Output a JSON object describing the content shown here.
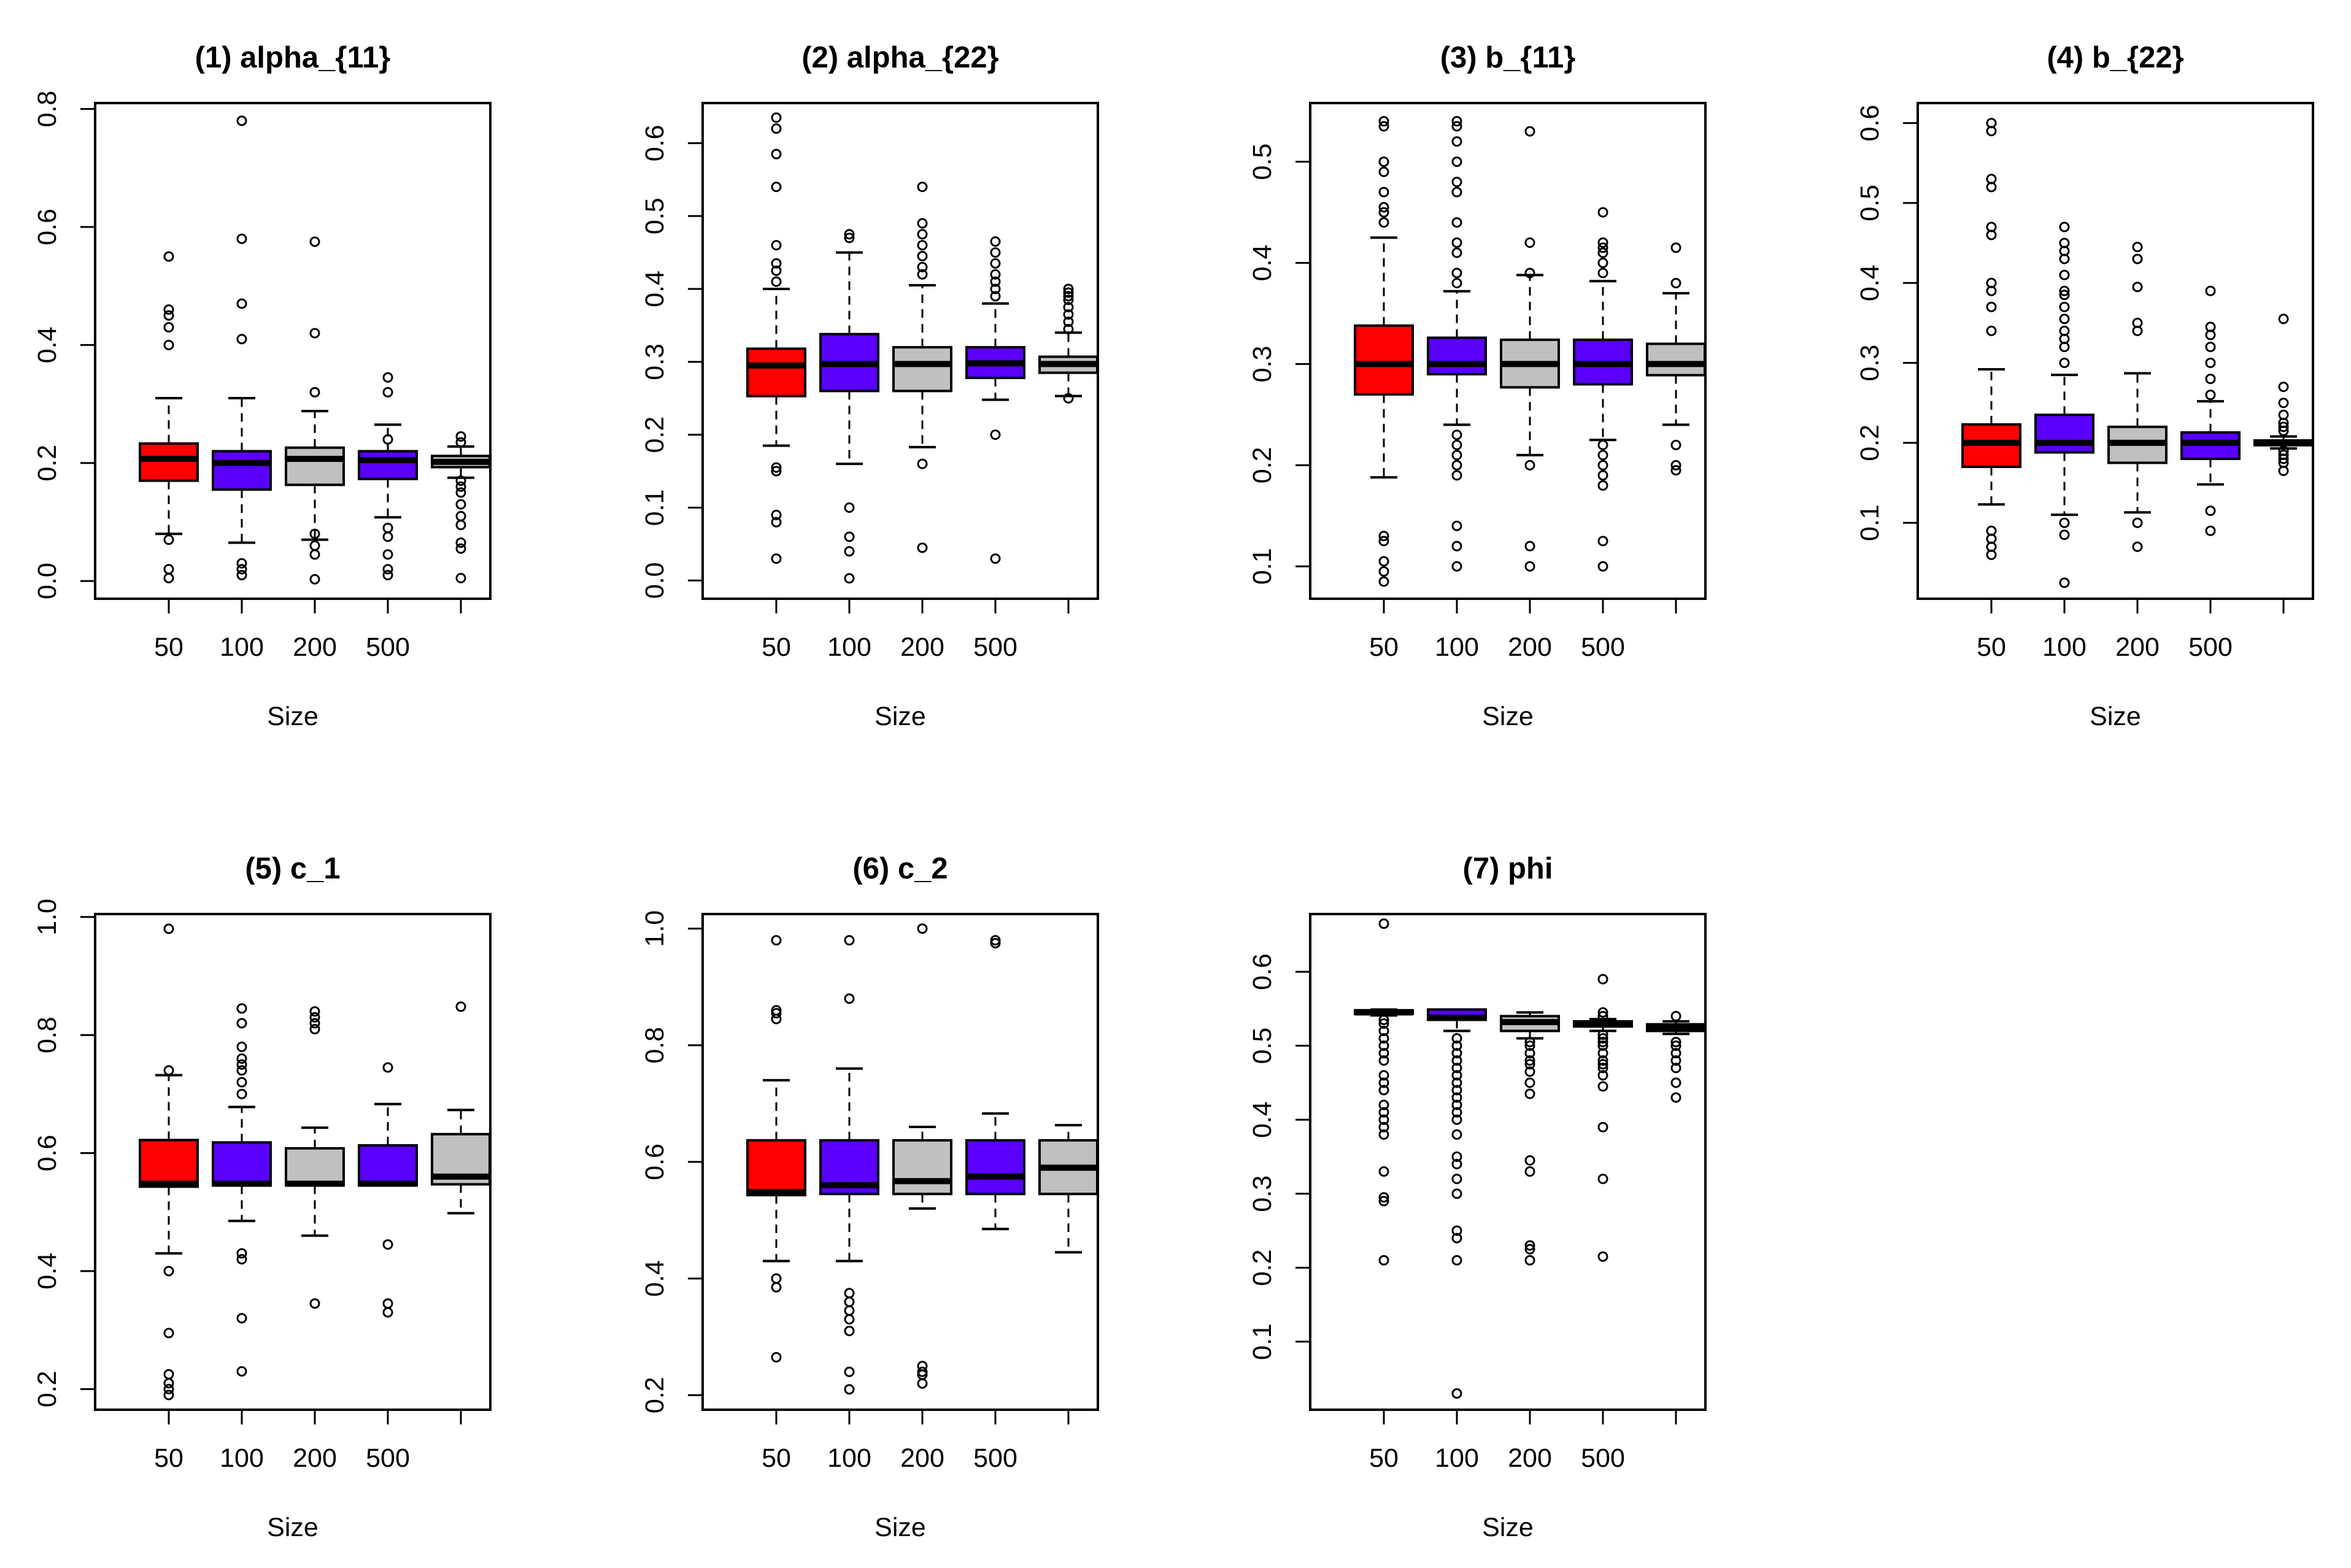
{
  "figure": {
    "colors": {
      "red": "#ff0000",
      "blue": "#5a00ff",
      "gray": "#c0c0c0",
      "ink": "#000000"
    }
  },
  "chart_data": [
    {
      "type": "box",
      "title": "(1)  alpha_{11}",
      "xlabel": "Size",
      "x_tick_labels": [
        "50",
        "100",
        "200",
        "500",
        ""
      ],
      "y_ticks": [
        0.0,
        0.2,
        0.4,
        0.6,
        0.8
      ],
      "y_tick_labels": [
        "0.0",
        "0.2",
        "0.4",
        "0.6",
        "0.8"
      ],
      "ylim": [
        -0.03,
        0.81
      ],
      "boxes": [
        {
          "color": "red",
          "whisker_low": 0.08,
          "q1": 0.17,
          "median": 0.207,
          "q3": 0.233,
          "whisker_high": 0.31,
          "outliers": [
            0.005,
            0.02,
            0.07,
            0.4,
            0.43,
            0.45,
            0.46,
            0.55
          ]
        },
        {
          "color": "blue",
          "whisker_low": 0.065,
          "q1": 0.155,
          "median": 0.2,
          "q3": 0.22,
          "whisker_high": 0.31,
          "outliers": [
            0.01,
            0.02,
            0.03,
            0.41,
            0.47,
            0.58,
            0.78
          ]
        },
        {
          "color": "gray",
          "whisker_low": 0.07,
          "q1": 0.163,
          "median": 0.207,
          "q3": 0.226,
          "whisker_high": 0.288,
          "outliers": [
            0.003,
            0.045,
            0.06,
            0.08,
            0.32,
            0.42,
            0.575
          ]
        },
        {
          "color": "blue",
          "whisker_low": 0.108,
          "q1": 0.173,
          "median": 0.205,
          "q3": 0.22,
          "whisker_high": 0.265,
          "outliers": [
            0.01,
            0.02,
            0.045,
            0.075,
            0.09,
            0.24,
            0.32,
            0.345
          ]
        },
        {
          "color": "gray",
          "whisker_low": 0.175,
          "q1": 0.193,
          "median": 0.202,
          "q3": 0.212,
          "whisker_high": 0.228,
          "outliers": [
            0.005,
            0.055,
            0.065,
            0.095,
            0.11,
            0.13,
            0.15,
            0.16,
            0.17,
            0.235,
            0.245
          ]
        }
      ]
    },
    {
      "type": "box",
      "title": "(2) alpha_{22}",
      "xlabel": "Size",
      "x_tick_labels": [
        "50",
        "100",
        "200",
        "500",
        ""
      ],
      "y_ticks": [
        0.0,
        0.1,
        0.2,
        0.3,
        0.4,
        0.5,
        0.6
      ],
      "y_tick_labels": [
        "0.0",
        "0.1",
        "0.2",
        "0.3",
        "0.4",
        "0.5",
        "0.6"
      ],
      "ylim": [
        -0.025,
        0.655
      ],
      "boxes": [
        {
          "color": "red",
          "whisker_low": 0.185,
          "q1": 0.253,
          "median": 0.295,
          "q3": 0.318,
          "whisker_high": 0.4,
          "outliers": [
            0.03,
            0.08,
            0.09,
            0.15,
            0.155,
            0.41,
            0.425,
            0.435,
            0.46,
            0.54,
            0.585,
            0.62,
            0.635
          ]
        },
        {
          "color": "blue",
          "whisker_low": 0.16,
          "q1": 0.26,
          "median": 0.297,
          "q3": 0.338,
          "whisker_high": 0.45,
          "outliers": [
            0.003,
            0.04,
            0.06,
            0.1,
            0.47,
            0.475
          ]
        },
        {
          "color": "gray",
          "whisker_low": 0.183,
          "q1": 0.26,
          "median": 0.297,
          "q3": 0.32,
          "whisker_high": 0.405,
          "outliers": [
            0.045,
            0.16,
            0.42,
            0.43,
            0.445,
            0.46,
            0.475,
            0.49,
            0.54
          ]
        },
        {
          "color": "blue",
          "whisker_low": 0.248,
          "q1": 0.278,
          "median": 0.298,
          "q3": 0.32,
          "whisker_high": 0.38,
          "outliers": [
            0.03,
            0.2,
            0.39,
            0.4,
            0.41,
            0.42,
            0.435,
            0.45,
            0.465
          ]
        },
        {
          "color": "gray",
          "whisker_low": 0.253,
          "q1": 0.285,
          "median": 0.297,
          "q3": 0.307,
          "whisker_high": 0.34,
          "outliers": [
            0.25,
            0.345,
            0.355,
            0.365,
            0.375,
            0.385,
            0.39,
            0.395,
            0.4
          ]
        }
      ]
    },
    {
      "type": "box",
      "title": "(3) b_{11}",
      "xlabel": "Size",
      "x_tick_labels": [
        "50",
        "100",
        "200",
        "500",
        ""
      ],
      "y_ticks": [
        0.1,
        0.2,
        0.3,
        0.4,
        0.5
      ],
      "y_tick_labels": [
        "0.1",
        "0.2",
        "0.3",
        "0.4",
        "0.5"
      ],
      "ylim": [
        0.068,
        0.558
      ],
      "boxes": [
        {
          "color": "red",
          "whisker_low": 0.188,
          "q1": 0.27,
          "median": 0.3,
          "q3": 0.338,
          "whisker_high": 0.425,
          "outliers": [
            0.085,
            0.095,
            0.105,
            0.125,
            0.13,
            0.44,
            0.45,
            0.455,
            0.47,
            0.49,
            0.5,
            0.535,
            0.54
          ]
        },
        {
          "color": "blue",
          "whisker_low": 0.24,
          "q1": 0.29,
          "median": 0.3,
          "q3": 0.326,
          "whisker_high": 0.372,
          "outliers": [
            0.1,
            0.12,
            0.14,
            0.19,
            0.2,
            0.21,
            0.22,
            0.23,
            0.38,
            0.39,
            0.41,
            0.42,
            0.44,
            0.47,
            0.48,
            0.5,
            0.52,
            0.535,
            0.54
          ]
        },
        {
          "color": "gray",
          "whisker_low": 0.21,
          "q1": 0.277,
          "median": 0.3,
          "q3": 0.324,
          "whisker_high": 0.388,
          "outliers": [
            0.1,
            0.12,
            0.2,
            0.39,
            0.42,
            0.53
          ]
        },
        {
          "color": "blue",
          "whisker_low": 0.225,
          "q1": 0.28,
          "median": 0.3,
          "q3": 0.324,
          "whisker_high": 0.382,
          "outliers": [
            0.1,
            0.125,
            0.18,
            0.19,
            0.2,
            0.21,
            0.22,
            0.39,
            0.4,
            0.41,
            0.415,
            0.42,
            0.45
          ]
        },
        {
          "color": "gray",
          "whisker_low": 0.24,
          "q1": 0.289,
          "median": 0.3,
          "q3": 0.32,
          "whisker_high": 0.37,
          "outliers": [
            0.195,
            0.2,
            0.22,
            0.38,
            0.415
          ]
        }
      ]
    },
    {
      "type": "box",
      "title": "(4)  b_{22}",
      "xlabel": "Size",
      "x_tick_labels": [
        "50",
        "100",
        "200",
        "500",
        ""
      ],
      "y_ticks": [
        0.1,
        0.2,
        0.3,
        0.4,
        0.5,
        0.6
      ],
      "y_tick_labels": [
        "0.1",
        "0.2",
        "0.3",
        "0.4",
        "0.5",
        "0.6"
      ],
      "ylim": [
        0.005,
        0.625
      ],
      "boxes": [
        {
          "color": "red",
          "whisker_low": 0.123,
          "q1": 0.17,
          "median": 0.2,
          "q3": 0.223,
          "whisker_high": 0.292,
          "outliers": [
            0.06,
            0.07,
            0.08,
            0.09,
            0.34,
            0.37,
            0.39,
            0.4,
            0.46,
            0.47,
            0.52,
            0.53,
            0.59,
            0.6
          ]
        },
        {
          "color": "blue",
          "whisker_low": 0.11,
          "q1": 0.188,
          "median": 0.2,
          "q3": 0.235,
          "whisker_high": 0.285,
          "outliers": [
            0.025,
            0.085,
            0.1,
            0.3,
            0.32,
            0.33,
            0.34,
            0.355,
            0.37,
            0.385,
            0.39,
            0.41,
            0.43,
            0.44,
            0.45,
            0.47
          ]
        },
        {
          "color": "gray",
          "whisker_low": 0.113,
          "q1": 0.175,
          "median": 0.2,
          "q3": 0.22,
          "whisker_high": 0.287,
          "outliers": [
            0.07,
            0.1,
            0.34,
            0.35,
            0.395,
            0.43,
            0.445
          ]
        },
        {
          "color": "blue",
          "whisker_low": 0.148,
          "q1": 0.18,
          "median": 0.2,
          "q3": 0.213,
          "whisker_high": 0.252,
          "outliers": [
            0.09,
            0.115,
            0.26,
            0.28,
            0.3,
            0.32,
            0.335,
            0.345,
            0.39
          ]
        },
        {
          "color": "gray",
          "whisker_low": 0.193,
          "q1": 0.197,
          "median": 0.2,
          "q3": 0.203,
          "whisker_high": 0.208,
          "outliers": [
            0.165,
            0.175,
            0.18,
            0.185,
            0.19,
            0.215,
            0.22,
            0.225,
            0.235,
            0.25,
            0.27,
            0.355
          ]
        }
      ]
    },
    {
      "type": "box",
      "title": "(5)  c_1",
      "xlabel": "Size",
      "x_tick_labels": [
        "50",
        "100",
        "200",
        "500",
        ""
      ],
      "y_ticks": [
        0.2,
        0.4,
        0.6,
        0.8,
        1.0
      ],
      "y_tick_labels": [
        "0.2",
        "0.4",
        "0.6",
        "0.8",
        "1.0"
      ],
      "ylim": [
        0.165,
        1.005
      ],
      "boxes": [
        {
          "color": "red",
          "whisker_low": 0.43,
          "q1": 0.543,
          "median": 0.548,
          "q3": 0.622,
          "whisker_high": 0.732,
          "outliers": [
            0.19,
            0.2,
            0.21,
            0.225,
            0.295,
            0.4,
            0.74,
            0.98
          ]
        },
        {
          "color": "blue",
          "whisker_low": 0.485,
          "q1": 0.545,
          "median": 0.548,
          "q3": 0.618,
          "whisker_high": 0.678,
          "outliers": [
            0.23,
            0.32,
            0.42,
            0.43,
            0.7,
            0.72,
            0.74,
            0.75,
            0.76,
            0.78,
            0.82,
            0.845
          ]
        },
        {
          "color": "gray",
          "whisker_low": 0.46,
          "q1": 0.545,
          "median": 0.548,
          "q3": 0.608,
          "whisker_high": 0.643,
          "outliers": [
            0.345,
            0.81,
            0.82,
            0.83,
            0.84
          ]
        },
        {
          "color": "blue",
          "whisker_low": 0.545,
          "q1": 0.545,
          "median": 0.548,
          "q3": 0.613,
          "whisker_high": 0.683,
          "outliers": [
            0.33,
            0.345,
            0.445,
            0.745
          ]
        },
        {
          "color": "gray",
          "whisker_low": 0.498,
          "q1": 0.547,
          "median": 0.56,
          "q3": 0.632,
          "whisker_high": 0.673,
          "outliers": [
            0.848
          ]
        }
      ]
    },
    {
      "type": "box",
      "title": "(6) c_2",
      "xlabel": "Size",
      "x_tick_labels": [
        "50",
        "100",
        "200",
        "500",
        ""
      ],
      "y_ticks": [
        0.2,
        0.4,
        0.6,
        0.8,
        1.0
      ],
      "y_tick_labels": [
        "0.2",
        "0.4",
        "0.6",
        "0.8",
        "1.0"
      ],
      "ylim": [
        0.175,
        1.025
      ],
      "boxes": [
        {
          "color": "red",
          "whisker_low": 0.43,
          "q1": 0.543,
          "median": 0.548,
          "q3": 0.637,
          "whisker_high": 0.74,
          "outliers": [
            0.265,
            0.385,
            0.4,
            0.845,
            0.855,
            0.86,
            0.98
          ]
        },
        {
          "color": "blue",
          "whisker_low": 0.43,
          "q1": 0.545,
          "median": 0.56,
          "q3": 0.637,
          "whisker_high": 0.76,
          "outliers": [
            0.21,
            0.24,
            0.31,
            0.33,
            0.345,
            0.36,
            0.375,
            0.88,
            0.98
          ]
        },
        {
          "color": "gray",
          "whisker_low": 0.52,
          "q1": 0.545,
          "median": 0.567,
          "q3": 0.637,
          "whisker_high": 0.66,
          "outliers": [
            0.22,
            0.235,
            0.24,
            0.25,
            1.0
          ]
        },
        {
          "color": "blue",
          "whisker_low": 0.485,
          "q1": 0.545,
          "median": 0.575,
          "q3": 0.637,
          "whisker_high": 0.683,
          "outliers": [
            0.975,
            0.98
          ]
        },
        {
          "color": "gray",
          "whisker_low": 0.445,
          "q1": 0.545,
          "median": 0.59,
          "q3": 0.637,
          "whisker_high": 0.663,
          "outliers": []
        }
      ]
    },
    {
      "type": "box",
      "title": "(7)  phi",
      "xlabel": "Size",
      "x_tick_labels": [
        "50",
        "100",
        "200",
        "500",
        ""
      ],
      "y_ticks": [
        0.1,
        0.2,
        0.3,
        0.4,
        0.5,
        0.6
      ],
      "y_tick_labels": [
        "0.1",
        "0.2",
        "0.3",
        "0.4",
        "0.5",
        "0.6"
      ],
      "ylim": [
        0.008,
        0.678
      ],
      "boxes": [
        {
          "color": "red",
          "whisker_low": 0.541,
          "q1": 0.543,
          "median": 0.545,
          "q3": 0.548,
          "whisker_high": 0.549,
          "outliers": [
            0.21,
            0.29,
            0.295,
            0.33,
            0.38,
            0.39,
            0.4,
            0.41,
            0.42,
            0.44,
            0.45,
            0.46,
            0.48,
            0.49,
            0.5,
            0.51,
            0.52,
            0.53,
            0.535,
            0.665
          ]
        },
        {
          "color": "blue",
          "whisker_low": 0.52,
          "q1": 0.535,
          "median": 0.538,
          "q3": 0.549,
          "whisker_high": 0.549,
          "outliers": [
            0.03,
            0.21,
            0.24,
            0.25,
            0.3,
            0.32,
            0.34,
            0.35,
            0.38,
            0.4,
            0.41,
            0.42,
            0.43,
            0.44,
            0.45,
            0.46,
            0.47,
            0.48,
            0.49,
            0.5,
            0.51
          ]
        },
        {
          "color": "gray",
          "whisker_low": 0.51,
          "q1": 0.52,
          "median": 0.532,
          "q3": 0.54,
          "whisker_high": 0.545,
          "outliers": [
            0.21,
            0.225,
            0.23,
            0.33,
            0.345,
            0.435,
            0.45,
            0.465,
            0.475,
            0.48,
            0.49,
            0.5,
            0.505
          ]
        },
        {
          "color": "blue",
          "whisker_low": 0.52,
          "q1": 0.526,
          "median": 0.53,
          "q3": 0.533,
          "whisker_high": 0.536,
          "outliers": [
            0.215,
            0.32,
            0.39,
            0.445,
            0.46,
            0.47,
            0.475,
            0.48,
            0.49,
            0.5,
            0.505,
            0.51,
            0.515,
            0.54,
            0.545,
            0.59
          ]
        },
        {
          "color": "gray",
          "whisker_low": 0.516,
          "q1": 0.52,
          "median": 0.525,
          "q3": 0.529,
          "whisker_high": 0.533,
          "outliers": [
            0.43,
            0.45,
            0.47,
            0.48,
            0.49,
            0.5,
            0.505,
            0.54
          ]
        }
      ]
    }
  ]
}
